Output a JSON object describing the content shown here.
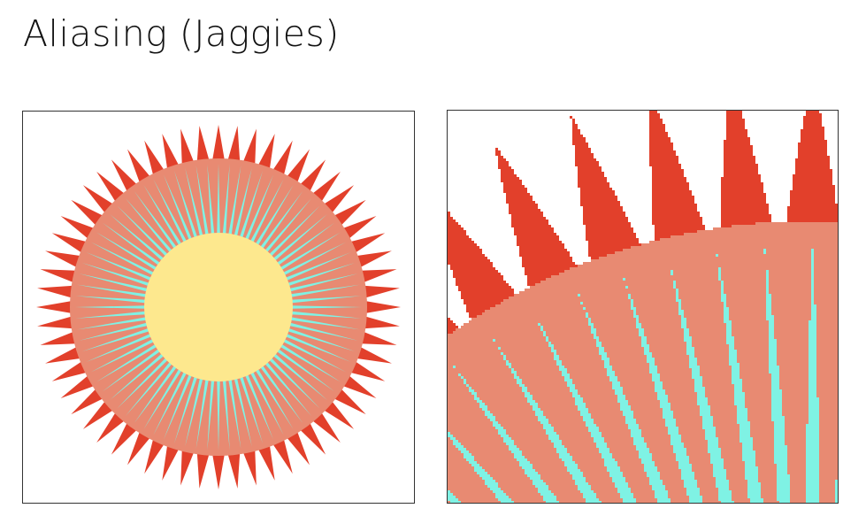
{
  "slide": {
    "title": "Aliasing (Jaggies)"
  },
  "figure": {
    "spike_count": 60,
    "ray_count": 80,
    "colors": {
      "spikes": "#e2402b",
      "ring": "#e88a72",
      "rays": "#7ff2e4",
      "core": "#fde88e",
      "background": "#ffffff",
      "border": "#333333"
    }
  }
}
